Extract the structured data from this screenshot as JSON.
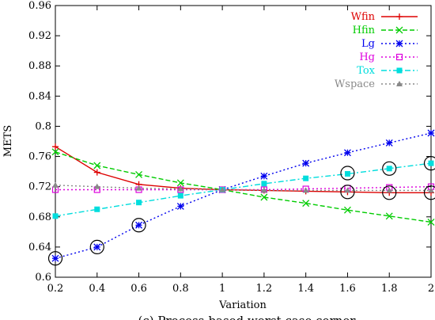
{
  "chart_data": {
    "type": "line",
    "title": "",
    "xlabel": "Variation",
    "ylabel": "METS",
    "caption": "(c) Process-based worst case corner",
    "xlim": [
      0.2,
      2.0
    ],
    "ylim": [
      0.6,
      0.96
    ],
    "xticks": [
      "0.2",
      "0.4",
      "0.6",
      "0.8",
      "1",
      "1.2",
      "1.4",
      "1.6",
      "1.8",
      "2"
    ],
    "yticks": [
      "0.6",
      "0.64",
      "0.68",
      "0.72",
      "0.76",
      "0.8",
      "0.84",
      "0.88",
      "0.92",
      "0.96"
    ],
    "legend_position": "top-right",
    "grid": false,
    "x": [
      0.2,
      0.4,
      0.6,
      0.8,
      1.0,
      1.2,
      1.4,
      1.6,
      1.8,
      2.0
    ],
    "series": [
      {
        "name": "Wfin",
        "color": "#dd0000",
        "dash": "solid",
        "marker": "plus",
        "values": [
          0.773,
          0.739,
          0.723,
          0.718,
          0.716,
          0.715,
          0.714,
          0.713,
          0.712,
          0.712
        ]
      },
      {
        "name": "Hfin",
        "color": "#00cc00",
        "dash": "dashed",
        "marker": "x",
        "values": [
          0.766,
          0.748,
          0.736,
          0.725,
          0.716,
          0.706,
          0.698,
          0.689,
          0.681,
          0.673
        ]
      },
      {
        "name": "Lg",
        "color": "#0000ee",
        "dash": "dotted",
        "marker": "star",
        "values": [
          0.625,
          0.64,
          0.669,
          0.694,
          0.716,
          0.734,
          0.751,
          0.765,
          0.778,
          0.791
        ]
      },
      {
        "name": "Hg",
        "color": "#dd00dd",
        "dash": "dotted",
        "marker": "square-open",
        "values": [
          0.716,
          0.716,
          0.716,
          0.716,
          0.716,
          0.716,
          0.717,
          0.718,
          0.719,
          0.72
        ]
      },
      {
        "name": "Tox",
        "color": "#00dddd",
        "dash": "dashdot",
        "marker": "square-filled",
        "values": [
          0.681,
          0.69,
          0.699,
          0.708,
          0.716,
          0.724,
          0.731,
          0.737,
          0.744,
          0.751
        ]
      },
      {
        "name": "Wspace",
        "color": "#888888",
        "dash": "dotted",
        "marker": "triangle",
        "values": [
          0.722,
          0.72,
          0.718,
          0.717,
          0.716,
          0.715,
          0.715,
          0.715,
          0.715,
          0.715
        ]
      }
    ],
    "circled_points": [
      {
        "x": 0.2,
        "y": 0.625
      },
      {
        "x": 0.4,
        "y": 0.64
      },
      {
        "x": 0.6,
        "y": 0.669
      },
      {
        "x": 1.6,
        "y": 0.738
      },
      {
        "x": 1.8,
        "y": 0.744
      },
      {
        "x": 2.0,
        "y": 0.751
      },
      {
        "x": 1.6,
        "y": 0.713
      },
      {
        "x": 1.8,
        "y": 0.712
      },
      {
        "x": 2.0,
        "y": 0.712
      }
    ]
  }
}
